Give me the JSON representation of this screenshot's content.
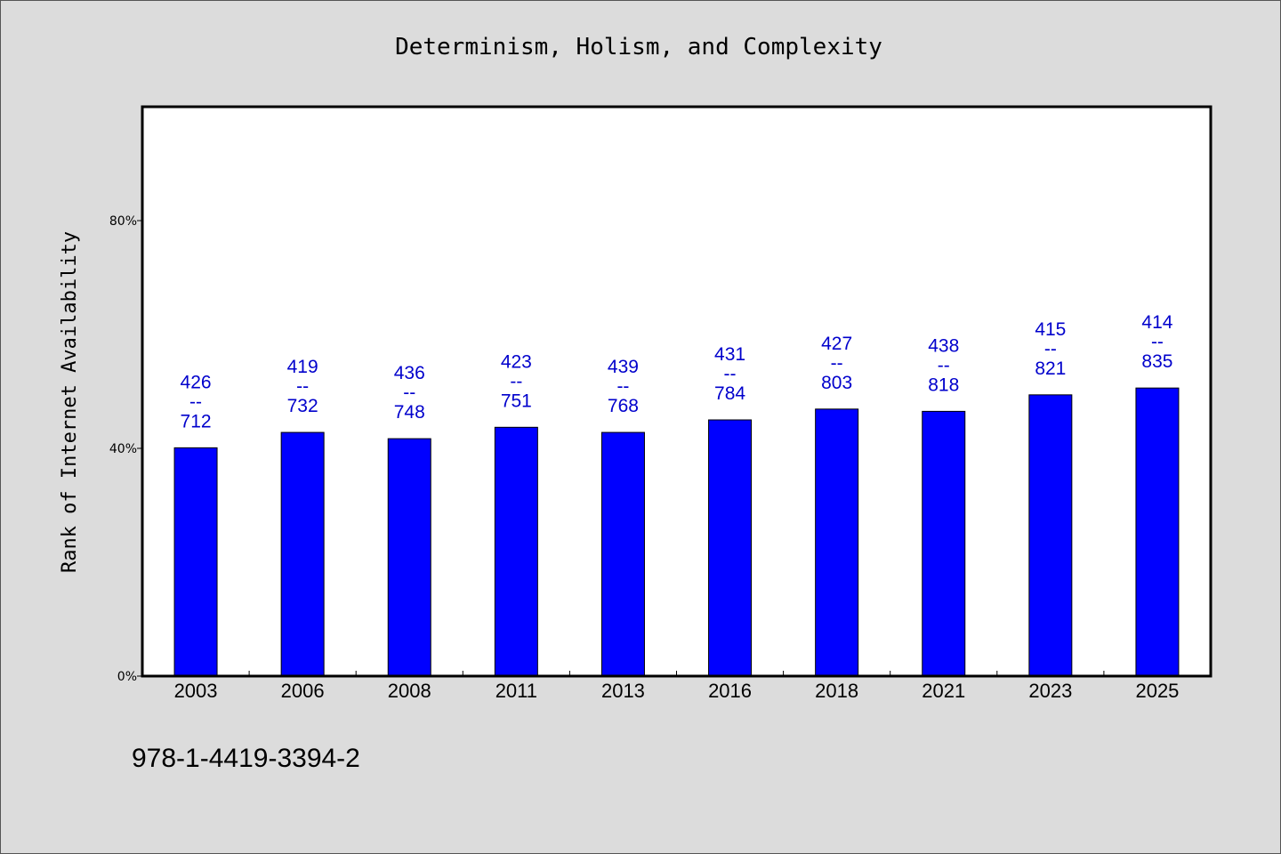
{
  "colors": {
    "background": "#dcdcdc",
    "plot_background": "#ffffff",
    "bar": "#0000ff",
    "label": "#0000cc"
  },
  "footer_text": "978-1-4419-3394-2",
  "chart_data": {
    "type": "bar",
    "title": "Determinism, Holism, and Complexity",
    "xlabel": "",
    "ylabel": "Rank of Internet Availability",
    "categories": [
      "2003",
      "2006",
      "2008",
      "2011",
      "2013",
      "2016",
      "2018",
      "2021",
      "2023",
      "2025"
    ],
    "values": [
      40.1,
      42.8,
      41.7,
      43.7,
      42.8,
      45.0,
      46.9,
      46.5,
      49.4,
      50.6
    ],
    "label_top": [
      "426",
      "419",
      "436",
      "423",
      "439",
      "431",
      "427",
      "438",
      "415",
      "414"
    ],
    "label_sep": "--",
    "label_bottom": [
      "712",
      "732",
      "748",
      "751",
      "768",
      "784",
      "803",
      "818",
      "821",
      "835"
    ],
    "yticks": [
      0,
      40,
      80
    ],
    "ytick_labels": [
      "0%",
      "40%",
      "80%"
    ],
    "ylim": [
      0,
      100
    ],
    "grid": false,
    "legend": false
  }
}
